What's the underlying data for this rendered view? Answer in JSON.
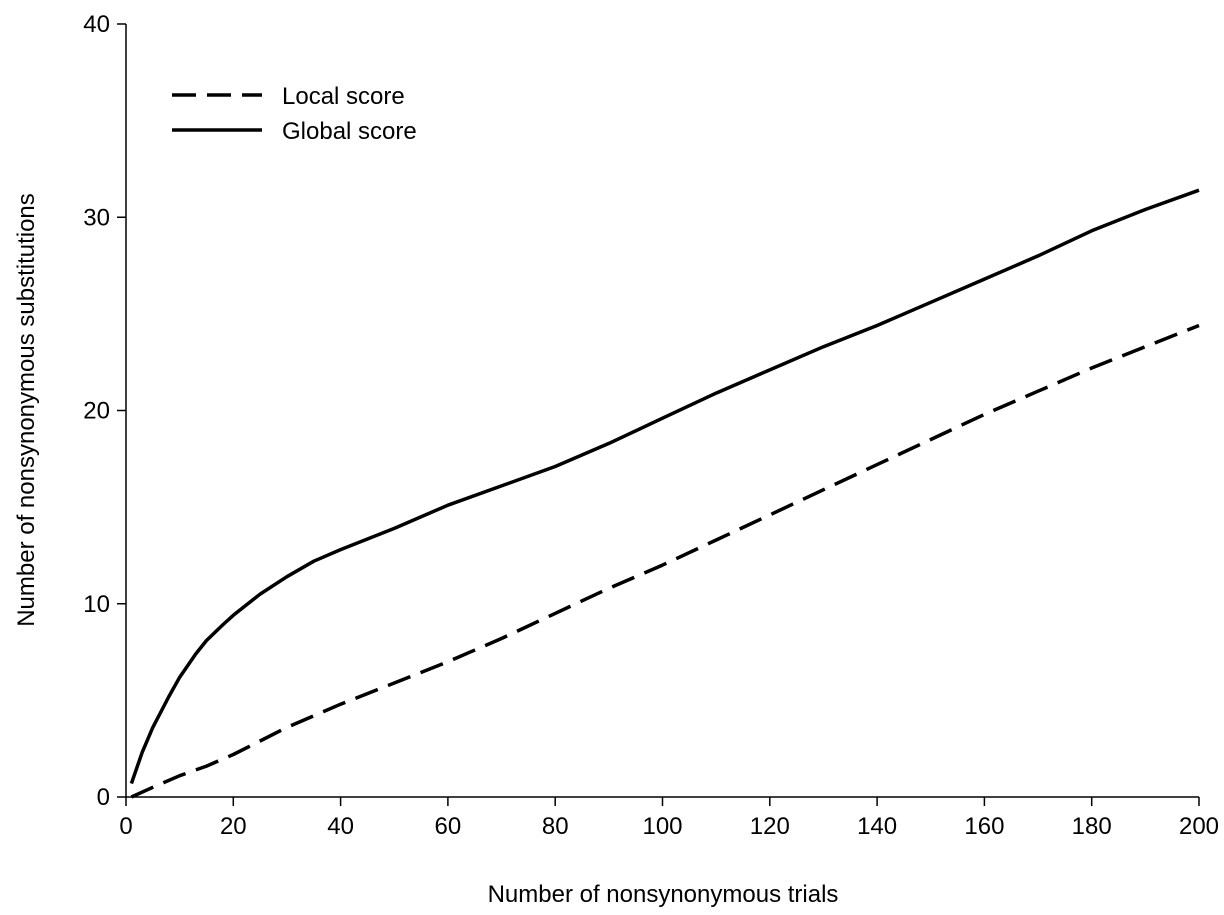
{
  "chart_data": {
    "type": "line",
    "title": "",
    "xlabel": "Number of nonsynonymous trials",
    "ylabel": "Number of nonsynonymous substitutions",
    "xlim": [
      0,
      200
    ],
    "ylim": [
      0,
      40
    ],
    "xticks": [
      0,
      20,
      40,
      60,
      80,
      100,
      120,
      140,
      160,
      180,
      200
    ],
    "yticks": [
      0,
      10,
      20,
      30,
      40
    ],
    "grid": false,
    "legend_position": "top-left",
    "series": [
      {
        "name": "Local score",
        "style": "dashed",
        "color": "#000000",
        "x": [
          1,
          5,
          10,
          15,
          20,
          25,
          30,
          40,
          50,
          60,
          70,
          80,
          90,
          100,
          110,
          120,
          130,
          140,
          150,
          160,
          170,
          180,
          190,
          200
        ],
        "y": [
          0.0,
          0.5,
          1.1,
          1.6,
          2.2,
          2.9,
          3.6,
          4.8,
          5.9,
          7.0,
          8.2,
          9.5,
          10.8,
          12.0,
          13.3,
          14.6,
          15.9,
          17.2,
          18.5,
          19.8,
          21.0,
          22.2,
          23.3,
          24.4
        ]
      },
      {
        "name": "Global score",
        "style": "solid",
        "color": "#000000",
        "x": [
          1,
          3,
          5,
          8,
          10,
          13,
          15,
          18,
          20,
          25,
          30,
          35,
          40,
          50,
          60,
          70,
          80,
          90,
          100,
          110,
          120,
          130,
          140,
          150,
          160,
          170,
          180,
          190,
          200
        ],
        "y": [
          0.7,
          2.3,
          3.6,
          5.2,
          6.2,
          7.4,
          8.1,
          8.9,
          9.4,
          10.5,
          11.4,
          12.2,
          12.8,
          13.9,
          15.1,
          16.1,
          17.1,
          18.3,
          19.6,
          20.9,
          22.1,
          23.3,
          24.4,
          25.6,
          26.8,
          28.0,
          29.3,
          30.4,
          31.4
        ]
      }
    ]
  }
}
